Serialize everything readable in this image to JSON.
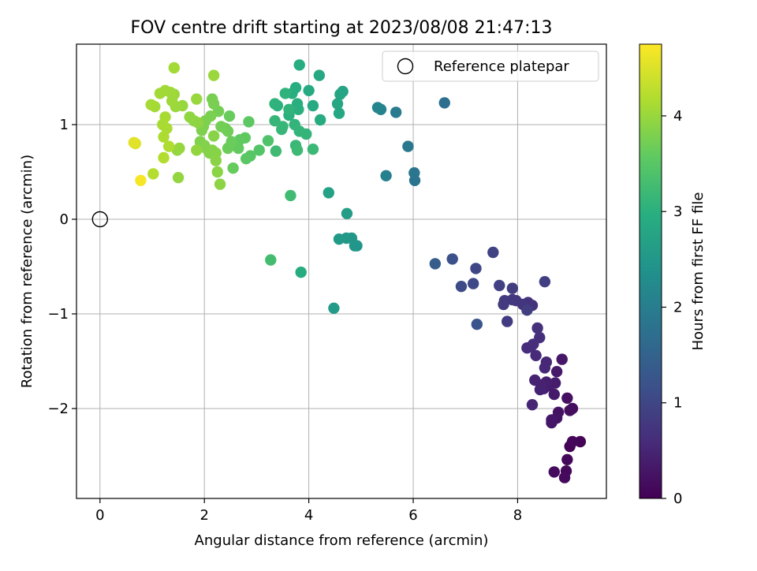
{
  "chart_data": {
    "type": "scatter",
    "title": "FOV centre drift starting at 2023/08/08 21:47:13",
    "xlabel": "Angular distance from reference (arcmin)",
    "ylabel": "Rotation from reference (arcmin)",
    "xlim": [
      -0.45,
      9.7
    ],
    "ylim": [
      -2.95,
      1.85
    ],
    "x_ticks": [
      0,
      2,
      4,
      6,
      8
    ],
    "x_tick_labels": [
      "0",
      "2",
      "4",
      "6",
      "8"
    ],
    "y_ticks": [
      -2,
      -1,
      0,
      1
    ],
    "y_tick_labels": [
      "−2",
      "−1",
      "0",
      "1"
    ],
    "grid": true,
    "legend": {
      "position": "top-right",
      "entries": [
        "Reference platepar"
      ]
    },
    "colorbar": {
      "label": "Hours from first FF file",
      "colormap": "viridis",
      "range": [
        0,
        4.75
      ],
      "ticks": [
        0,
        1,
        2,
        3,
        4
      ],
      "tick_labels": [
        "0",
        "1",
        "2",
        "3",
        "4"
      ]
    },
    "reference_point": {
      "x": 0,
      "y": 0,
      "name": "Reference platepar"
    },
    "series": [
      {
        "points": [
          [
            9.0,
            -2.4,
            0.03
          ],
          [
            9.2,
            -2.35,
            0.05
          ],
          [
            9.05,
            -2.35,
            0.07
          ],
          [
            8.95,
            -2.54,
            0.09
          ],
          [
            8.93,
            -2.66,
            0.11
          ],
          [
            8.9,
            -2.73,
            0.13
          ],
          [
            8.7,
            -2.67,
            0.15
          ],
          [
            9.05,
            -2.0,
            0.17
          ],
          [
            9.0,
            -2.02,
            0.19
          ],
          [
            8.95,
            -1.89,
            0.21
          ],
          [
            8.78,
            -2.04,
            0.23
          ],
          [
            8.75,
            -2.1,
            0.25
          ],
          [
            8.65,
            -2.15,
            0.27
          ],
          [
            8.65,
            -2.12,
            0.29
          ],
          [
            8.85,
            -1.48,
            0.31
          ],
          [
            8.75,
            -1.61,
            0.33
          ],
          [
            8.7,
            -1.85,
            0.35
          ],
          [
            8.72,
            -1.73,
            0.37
          ],
          [
            8.6,
            -1.76,
            0.39
          ],
          [
            8.55,
            -1.72,
            0.41
          ],
          [
            8.5,
            -1.79,
            0.43
          ],
          [
            8.45,
            -1.75,
            0.45
          ],
          [
            8.43,
            -1.8,
            0.47
          ],
          [
            8.33,
            -1.7,
            0.49
          ],
          [
            8.28,
            -1.96,
            0.51
          ],
          [
            8.55,
            -1.51,
            0.53
          ],
          [
            8.52,
            -1.57,
            0.55
          ],
          [
            8.35,
            -1.44,
            0.57
          ],
          [
            8.25,
            -1.35,
            0.59
          ],
          [
            8.18,
            -1.36,
            0.61
          ],
          [
            8.3,
            -1.32,
            0.63
          ],
          [
            8.42,
            -1.25,
            0.65
          ],
          [
            8.38,
            -1.15,
            0.67
          ],
          [
            8.28,
            -0.91,
            0.69
          ],
          [
            8.2,
            -0.88,
            0.71
          ],
          [
            8.1,
            -0.9,
            0.73
          ],
          [
            7.97,
            -0.86,
            0.75
          ],
          [
            7.9,
            -0.85,
            0.77
          ],
          [
            7.75,
            -0.86,
            0.79
          ],
          [
            7.73,
            -0.9,
            0.81
          ],
          [
            7.8,
            -1.08,
            0.83
          ],
          [
            7.9,
            -0.73,
            0.85
          ],
          [
            8.18,
            -0.96,
            0.87
          ],
          [
            8.52,
            -0.66,
            0.89
          ],
          [
            7.65,
            -0.7,
            0.91
          ],
          [
            7.53,
            -0.35,
            0.93
          ],
          [
            7.2,
            -0.52,
            1.0
          ],
          [
            7.15,
            -0.68,
            1.05
          ],
          [
            6.92,
            -0.71,
            1.1
          ],
          [
            6.75,
            -0.42,
            1.15
          ],
          [
            7.22,
            -1.11,
            1.25
          ],
          [
            6.42,
            -0.47,
            1.4
          ],
          [
            6.6,
            1.23,
            1.7
          ],
          [
            6.03,
            0.41,
            1.8
          ],
          [
            6.02,
            0.49,
            1.85
          ],
          [
            5.9,
            0.77,
            1.9
          ],
          [
            5.67,
            1.13,
            1.95
          ],
          [
            5.48,
            0.46,
            2.05
          ],
          [
            5.38,
            1.16,
            2.1
          ],
          [
            5.32,
            1.18,
            2.15
          ],
          [
            4.92,
            -0.28,
            2.45
          ],
          [
            4.88,
            -0.28,
            2.48
          ],
          [
            4.82,
            -0.2,
            2.5
          ],
          [
            4.72,
            -0.2,
            2.52
          ],
          [
            4.58,
            -0.21,
            2.55
          ],
          [
            4.48,
            -0.94,
            2.58
          ],
          [
            4.73,
            0.06,
            2.6
          ],
          [
            4.38,
            0.28,
            2.7
          ],
          [
            4.65,
            1.35,
            2.75
          ],
          [
            4.6,
            1.32,
            2.78
          ],
          [
            4.55,
            1.22,
            2.8
          ],
          [
            4.58,
            1.12,
            2.82
          ],
          [
            4.2,
            1.52,
            2.85
          ],
          [
            4.08,
            1.2,
            2.87
          ],
          [
            4.0,
            1.36,
            2.88
          ],
          [
            4.22,
            1.05,
            2.9
          ],
          [
            3.85,
            -0.56,
            2.92
          ],
          [
            3.82,
            1.63,
            2.93
          ],
          [
            3.75,
            1.39,
            2.95
          ],
          [
            3.68,
            1.33,
            2.97
          ],
          [
            3.78,
            1.22,
            2.98
          ],
          [
            3.8,
            1.16,
            3.0
          ],
          [
            3.62,
            1.1,
            3.02
          ],
          [
            3.4,
            1.2,
            3.03
          ],
          [
            3.35,
            1.22,
            3.05
          ],
          [
            3.55,
            1.33,
            3.06
          ],
          [
            3.62,
            1.16,
            3.07
          ],
          [
            3.73,
            1.0,
            3.09
          ],
          [
            3.82,
            0.93,
            3.1
          ],
          [
            3.95,
            0.9,
            3.11
          ],
          [
            3.35,
            1.04,
            3.13
          ],
          [
            3.48,
            0.95,
            3.14
          ],
          [
            3.5,
            0.98,
            3.15
          ],
          [
            3.75,
            0.78,
            3.16
          ],
          [
            4.08,
            0.74,
            3.18
          ],
          [
            3.78,
            0.73,
            3.2
          ],
          [
            3.37,
            0.72,
            3.22
          ],
          [
            3.65,
            0.25,
            3.25
          ],
          [
            3.27,
            -0.43,
            3.28
          ],
          [
            3.22,
            0.83,
            3.4
          ],
          [
            3.05,
            0.73,
            3.45
          ],
          [
            2.88,
            0.67,
            3.5
          ],
          [
            2.8,
            0.64,
            3.52
          ],
          [
            2.85,
            1.03,
            3.55
          ],
          [
            2.78,
            0.86,
            3.57
          ],
          [
            2.68,
            0.84,
            3.58
          ],
          [
            2.65,
            0.75,
            3.6
          ],
          [
            2.55,
            0.54,
            3.62
          ],
          [
            2.48,
            1.09,
            3.64
          ],
          [
            2.52,
            0.82,
            3.65
          ],
          [
            2.45,
            0.75,
            3.67
          ],
          [
            2.4,
            0.96,
            3.68
          ],
          [
            2.45,
            0.93,
            3.7
          ],
          [
            2.32,
            0.98,
            3.72
          ],
          [
            2.27,
            1.14,
            3.73
          ],
          [
            2.15,
            1.27,
            3.75
          ],
          [
            2.18,
            1.22,
            3.76
          ],
          [
            2.12,
            1.09,
            3.77
          ],
          [
            2.02,
            1.04,
            3.78
          ],
          [
            1.98,
            0.98,
            3.8
          ],
          [
            1.95,
            0.94,
            3.81
          ],
          [
            1.92,
            0.82,
            3.82
          ],
          [
            2.0,
            0.78,
            3.83
          ],
          [
            2.05,
            0.74,
            3.84
          ],
          [
            2.1,
            0.7,
            3.85
          ],
          [
            2.15,
            0.73,
            3.86
          ],
          [
            2.22,
            0.7,
            3.87
          ],
          [
            2.18,
            0.88,
            3.88
          ],
          [
            2.22,
            0.62,
            3.89
          ],
          [
            2.25,
            0.5,
            3.9
          ],
          [
            2.3,
            0.37,
            3.91
          ],
          [
            1.88,
            1.02,
            3.92
          ],
          [
            1.8,
            1.04,
            3.93
          ],
          [
            1.72,
            1.08,
            3.94
          ],
          [
            1.85,
            0.73,
            3.95
          ],
          [
            1.5,
            0.44,
            3.96
          ],
          [
            1.48,
            0.73,
            3.97
          ],
          [
            1.52,
            0.75,
            3.98
          ],
          [
            1.58,
            1.2,
            3.99
          ],
          [
            1.85,
            1.27,
            4.0
          ],
          [
            2.18,
            1.52,
            4.01
          ],
          [
            1.45,
            1.19,
            4.02
          ],
          [
            1.42,
            1.32,
            4.03
          ],
          [
            1.38,
            1.25,
            4.04
          ],
          [
            1.35,
            1.34,
            4.05
          ],
          [
            1.25,
            1.36,
            4.06
          ],
          [
            1.15,
            1.33,
            4.07
          ],
          [
            1.42,
            1.6,
            4.08
          ],
          [
            1.05,
            1.19,
            4.09
          ],
          [
            0.98,
            1.21,
            4.1
          ],
          [
            1.25,
            1.08,
            4.11
          ],
          [
            1.2,
            1.0,
            4.12
          ],
          [
            1.28,
            0.96,
            4.13
          ],
          [
            1.22,
            0.87,
            4.15
          ],
          [
            1.32,
            0.77,
            4.17
          ],
          [
            1.22,
            0.65,
            4.19
          ],
          [
            1.02,
            0.48,
            4.21
          ],
          [
            0.68,
            0.8,
            4.5
          ],
          [
            0.65,
            0.81,
            4.55
          ],
          [
            0.78,
            0.41,
            4.7
          ]
        ]
      }
    ]
  }
}
